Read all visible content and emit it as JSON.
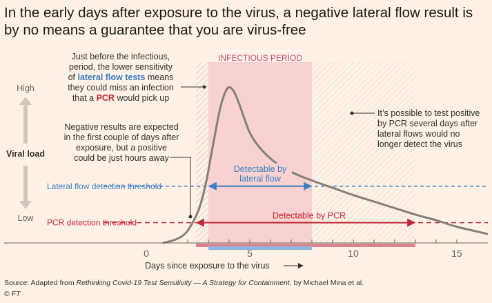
{
  "title": "In the early days after exposure to the virus, a negative lateral flow result is by no means a guarantee that you are virus-free",
  "source": {
    "prefix": "Source: Adapted from ",
    "work": "Rethinking Covid-19 Test Sensitivity — A Strategy for Containment",
    "suffix": ", by Michael Mina et al.",
    "copyright": "© FT"
  },
  "colors": {
    "background": "#fff1e5",
    "curve": "#857f7a",
    "infectious": "#f8d1d0",
    "lateral_flow": "#3a7dc4",
    "pcr": "#c0283b",
    "arrow_grey": "#cfc8bd",
    "infectious_label": "#c44a7c"
  },
  "chart_data": {
    "type": "line",
    "xlabel": "Days since exposure to the virus",
    "ylabel": "Viral load",
    "y_high_label": "High",
    "y_low_label": "Low",
    "xlim": [
      -1.5,
      16.5
    ],
    "ylim": [
      0,
      1
    ],
    "x_ticks": [
      0,
      5,
      10,
      15
    ],
    "x_tick_labels": [
      "0",
      "5",
      "10",
      "15"
    ],
    "series": [
      {
        "x": [
          0.8,
          1.4,
          1.9,
          2.3,
          2.6,
          2.9,
          3.1,
          3.35,
          3.55,
          3.75,
          3.9,
          4.0,
          4.1,
          4.25,
          4.45,
          4.7,
          5.0,
          5.4,
          6.0,
          6.6,
          7.3,
          8.0,
          9.0,
          10.0,
          11.0,
          12.0,
          13.0,
          14.0,
          15.0,
          16.5
        ],
        "y": [
          0.0,
          0.02,
          0.06,
          0.14,
          0.23,
          0.38,
          0.52,
          0.69,
          0.82,
          0.91,
          0.95,
          0.96,
          0.955,
          0.93,
          0.87,
          0.78,
          0.68,
          0.6,
          0.52,
          0.465,
          0.42,
          0.385,
          0.34,
          0.295,
          0.255,
          0.215,
          0.175,
          0.14,
          0.1,
          0.055
        ]
      }
    ],
    "lateral_flow_threshold": {
      "label": "Lateral flow detection threshold",
      "y": 0.35
    },
    "pcr_threshold": {
      "label": "PCR detection threshold",
      "y": 0.125
    },
    "infectious_period": {
      "label": "INFECTIOUS PERIOD",
      "start": 3,
      "end": 8
    },
    "pre_infectious_hatch": {
      "start": 2.4,
      "end": 3
    },
    "post_infectious_hatch": {
      "start": 8,
      "end": 13
    },
    "lateral_flow_detectable": {
      "label_line1": "Detectable by",
      "label_line2": "lateral flow",
      "start": 3,
      "end": 8
    },
    "pcr_detectable": {
      "label": "Detectable by PCR",
      "start": 2.4,
      "end": 13
    },
    "annotations": [
      {
        "id": "before-infectious",
        "segments": [
          [
            {
              "text": "Just before the infectious,",
              "style": "normal"
            }
          ],
          [
            {
              "text": "period, the lower sensitivity",
              "style": "normal"
            }
          ],
          [
            {
              "text": "of ",
              "style": "normal"
            },
            {
              "text": "lateral flow tests",
              "style": "lateral"
            },
            {
              "text": " means",
              "style": "normal"
            }
          ],
          [
            {
              "text": "they could miss an infection",
              "style": "normal"
            }
          ],
          [
            {
              "text": "that a ",
              "style": "normal"
            },
            {
              "text": "PCR",
              "style": "pcr"
            },
            {
              "text": " would pick up",
              "style": "normal"
            }
          ]
        ]
      },
      {
        "id": "negative-results",
        "segments": [
          [
            {
              "text": "Negative results are expected",
              "style": "normal"
            }
          ],
          [
            {
              "text": "in the first couple of days after",
              "style": "normal"
            }
          ],
          [
            {
              "text": "exposure, but a positive",
              "style": "normal"
            }
          ],
          [
            {
              "text": "could be just hours away",
              "style": "normal"
            }
          ]
        ]
      },
      {
        "id": "after-infectious",
        "segments": [
          [
            {
              "text": "It’s possible to test positive",
              "style": "normal"
            }
          ],
          [
            {
              "text": "by PCR several days after",
              "style": "normal"
            }
          ],
          [
            {
              "text": "lateral flows would no",
              "style": "normal"
            }
          ],
          [
            {
              "text": "longer detect the virus",
              "style": "normal"
            }
          ]
        ]
      }
    ]
  }
}
